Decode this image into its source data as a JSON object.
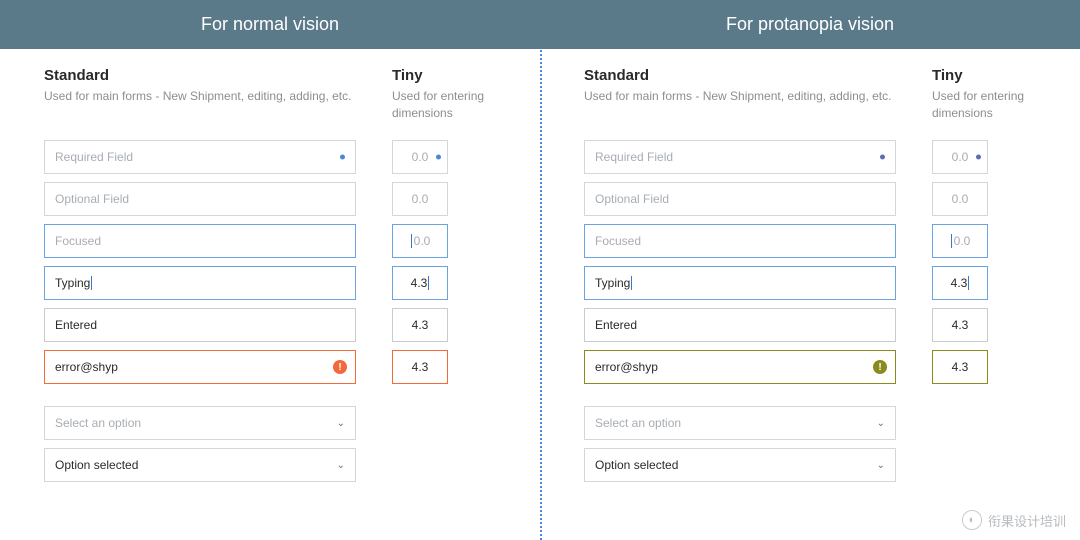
{
  "colors": {
    "header_bg": "#5a7a8a",
    "border_default": "#d3d7dc",
    "border_focused": "#6aa3e0",
    "text_muted": "#a7adb3",
    "text_body": "#2a2a2a",
    "required_dot_normal": "#4a88d6",
    "required_dot_protanopia": "#5a6fb8",
    "error_normal": "#f26a3b",
    "error_protanopia": "#8a8a1f",
    "divider": "#4a88d6"
  },
  "panels": [
    {
      "key": "normal",
      "title": "For normal vision",
      "required_dot_color": "#4a88d6",
      "error_color": "#f26a3b"
    },
    {
      "key": "protanopia",
      "title": "For protanopia vision",
      "required_dot_color": "#5a6fb8",
      "error_color": "#8a8a1f"
    }
  ],
  "sections": {
    "standard": {
      "title": "Standard",
      "desc": "Used for main forms - New Shipment, editing, adding, etc."
    },
    "tiny": {
      "title": "Tiny",
      "desc": "Used for entering dimensions"
    }
  },
  "fields": {
    "required": {
      "label": "Required Field",
      "tiny": "0.0"
    },
    "optional": {
      "label": "Optional Field",
      "tiny": "0.0"
    },
    "focused": {
      "label": "Focused",
      "tiny": "0.0"
    },
    "typing": {
      "label": "Typing",
      "tiny": "4.3"
    },
    "entered": {
      "label": "Entered",
      "tiny": "4.3"
    },
    "error": {
      "label": "error@shyp",
      "tiny": "4.3"
    }
  },
  "selects": {
    "placeholder": "Select an option",
    "selected": "Option selected"
  },
  "watermark": "衔果设计培训"
}
